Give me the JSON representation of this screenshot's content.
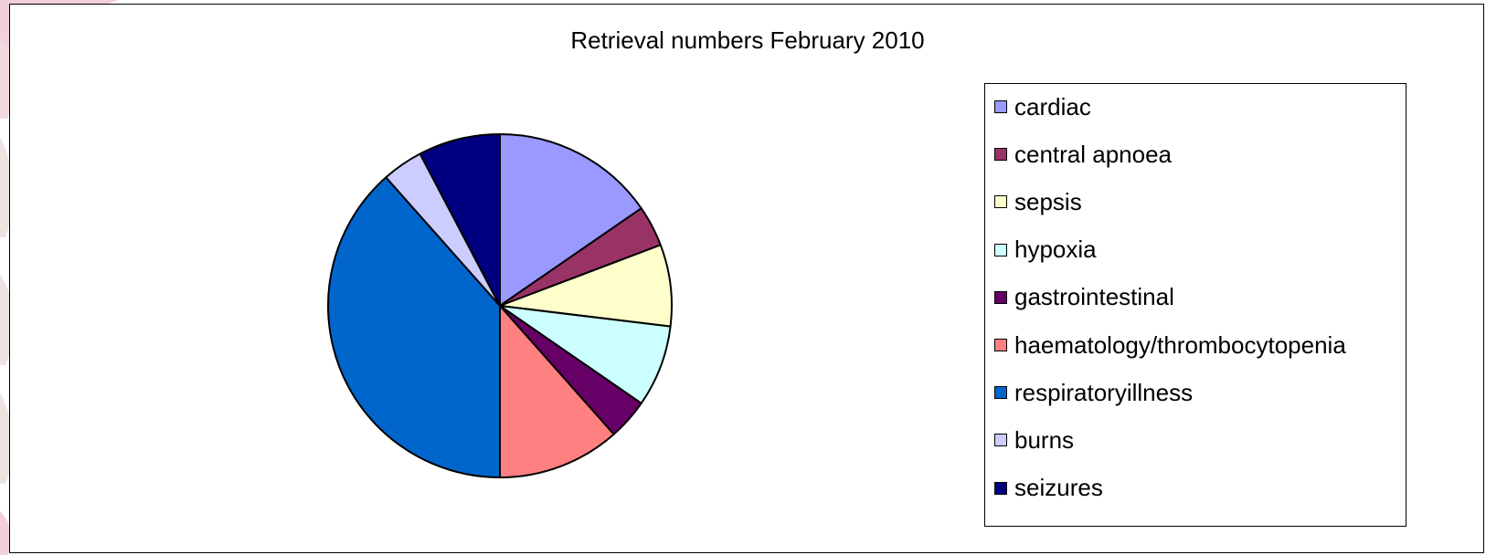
{
  "chart_data": {
    "type": "pie",
    "title": "Retrieval numbers February 2010",
    "categories": [
      "cardiac",
      "central apnoea",
      "sepsis",
      "hypoxia",
      "gastrointestinal",
      "haematology/thrombocytopenia",
      "respiratoryillness",
      "burns",
      "seizures"
    ],
    "values": [
      4,
      1,
      2,
      2,
      1,
      3,
      10,
      1,
      2
    ],
    "colors": [
      "#9999FF",
      "#993366",
      "#FFFFCC",
      "#CCFFFF",
      "#660066",
      "#FF8080",
      "#0066CC",
      "#CCCCFF",
      "#000080"
    ],
    "start_angle": "12 o'clock",
    "direction": "clockwise",
    "legend_position": "right"
  }
}
